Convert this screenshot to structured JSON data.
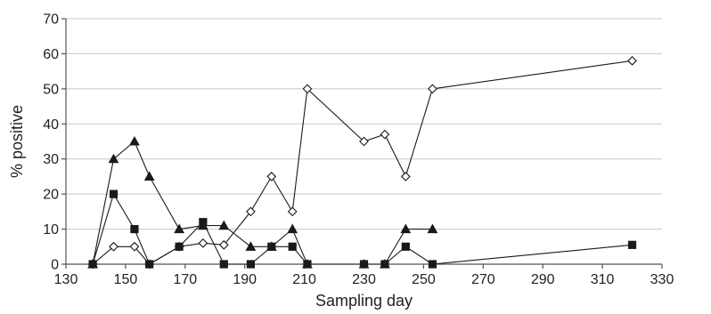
{
  "chart_data": {
    "type": "line",
    "title": "",
    "xlabel": "Sampling day",
    "ylabel": "% positive",
    "xlim": [
      130,
      330
    ],
    "ylim": [
      0,
      70
    ],
    "x_ticks": [
      130,
      150,
      170,
      190,
      210,
      230,
      250,
      270,
      290,
      310,
      330
    ],
    "y_ticks": [
      0,
      10,
      20,
      30,
      40,
      50,
      60,
      70
    ],
    "grid": {
      "horizontal": true,
      "vertical": false
    },
    "legend": "none",
    "series": [
      {
        "marker": "open-diamond",
        "color": "#1a1a1a",
        "x": [
          139,
          146,
          153,
          158,
          168,
          176,
          183,
          192,
          199,
          206,
          211,
          230,
          237,
          244,
          253,
          320
        ],
        "y": [
          0,
          5,
          5,
          0,
          5,
          6,
          5.5,
          15,
          25,
          15,
          50,
          35,
          37,
          25,
          50,
          58
        ]
      },
      {
        "marker": "filled-triangle",
        "color": "#1a1a1a",
        "x": [
          139,
          146,
          153,
          158,
          168,
          176,
          183,
          192,
          199,
          206,
          211,
          230,
          237,
          244,
          253
        ],
        "y": [
          0,
          30,
          35,
          25,
          10,
          11,
          11,
          5,
          5,
          10,
          0,
          0,
          0,
          10,
          10
        ]
      },
      {
        "marker": "filled-square",
        "color": "#1a1a1a",
        "x": [
          139,
          146,
          153,
          158,
          168,
          176,
          183,
          192,
          199,
          206,
          211,
          230,
          237,
          244,
          253,
          320
        ],
        "y": [
          0,
          20,
          10,
          0,
          5,
          12,
          0,
          0,
          5,
          5,
          0,
          0,
          0,
          5,
          0,
          5.5
        ]
      }
    ]
  }
}
